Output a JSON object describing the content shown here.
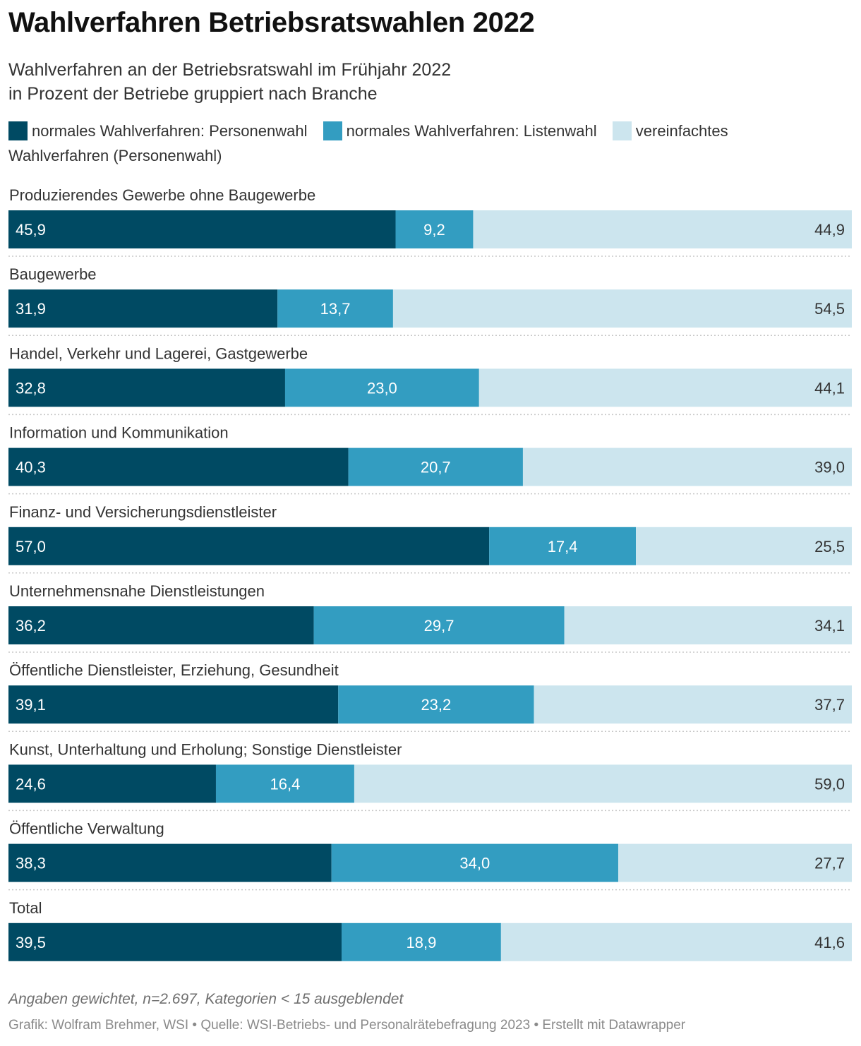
{
  "header": {
    "title": "Wahlverfahren Betriebsratswahlen 2022",
    "subtitle_line1": "Wahlverfahren an der Betriebsratswahl im Frühjahr 2022",
    "subtitle_line2": "in Prozent der Betriebe gruppiert nach Branche"
  },
  "footer": {
    "note": "Angaben gewichtet, n=2.697, Kategorien < 15 ausgeblendet",
    "credits": "Grafik: Wolfram Brehmer, WSI • Quelle: WSI-Betriebs- und Personalrätebefragung 2023 • Erstellt mit Datawrapper"
  },
  "chart_data": {
    "type": "bar",
    "orientation": "horizontal",
    "stacked": true,
    "xlim": [
      0,
      100
    ],
    "legend_position": "top",
    "grid": false,
    "categories": [
      "Produzierendes Gewerbe ohne Baugewerbe",
      "Baugewerbe",
      "Handel, Verkehr und Lagerei, Gastgewerbe",
      "Information und Kommunikation",
      "Finanz- und Versicherungsdienstleister",
      "Unternehmensnahe Dienstleistungen",
      "Öffentliche Dienstleister, Erziehung, Gesundheit",
      "Kunst, Unterhaltung und Erholung; Sonstige Dienstleister",
      "Öffentliche Verwaltung",
      "Total"
    ],
    "series": [
      {
        "name": "normales Wahlverfahren: Personenwahl",
        "color": "#004a63",
        "values": [
          45.9,
          31.9,
          32.8,
          40.3,
          57.0,
          36.2,
          39.1,
          24.6,
          38.3,
          39.5
        ]
      },
      {
        "name": "normales Wahlverfahren: Listenwahl",
        "color": "#339dc1",
        "values": [
          9.2,
          13.7,
          23.0,
          20.7,
          17.4,
          29.7,
          23.2,
          16.4,
          34.0,
          18.9
        ]
      },
      {
        "name": "vereinfachtes Wahlverfahren (Personenwahl)",
        "color": "#cce5ee",
        "values": [
          44.9,
          54.5,
          44.1,
          39.0,
          25.5,
          34.1,
          37.7,
          59.0,
          27.7,
          41.6
        ]
      }
    ],
    "label_colors": [
      "#ffffff",
      "#ffffff",
      "#333333"
    ]
  }
}
